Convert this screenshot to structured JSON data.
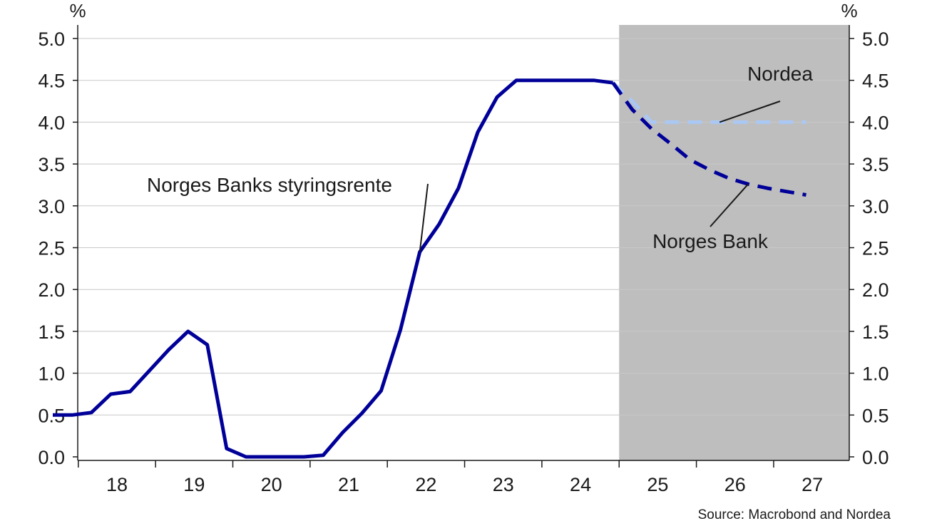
{
  "chart_data": {
    "type": "line",
    "y_unit_left": "%",
    "y_unit_right": "%",
    "ylim": [
      0.0,
      5.0
    ],
    "y_ticks": [
      "0.0",
      "0.5",
      "1.0",
      "1.5",
      "2.0",
      "2.5",
      "3.0",
      "3.5",
      "4.0",
      "4.5",
      "5.0"
    ],
    "x_ticks": [
      "18",
      "19",
      "20",
      "21",
      "22",
      "23",
      "24",
      "25",
      "26",
      "27"
    ],
    "xlim": [
      2017.55,
      2027.45
    ],
    "grid": true,
    "forecast_shading": {
      "from": 2025.0,
      "to": 2027.45,
      "color": "#bebebe"
    },
    "series": [
      {
        "name": "Norges Banks styringsrente",
        "style": "solid",
        "color": "#000099",
        "x": [
          2017.67,
          2017.92,
          2018.17,
          2018.42,
          2018.67,
          2018.92,
          2019.17,
          2019.42,
          2019.67,
          2019.92,
          2020.17,
          2020.42,
          2020.67,
          2020.92,
          2021.17,
          2021.42,
          2021.67,
          2021.92,
          2022.17,
          2022.42,
          2022.67,
          2022.92,
          2023.17,
          2023.42,
          2023.67,
          2023.92,
          2024.17,
          2024.42,
          2024.67,
          2024.92
        ],
        "y": [
          0.5,
          0.5,
          0.53,
          0.75,
          0.78,
          1.03,
          1.28,
          1.5,
          1.34,
          0.1,
          0.0,
          0.0,
          0.0,
          0.0,
          0.02,
          0.29,
          0.52,
          0.79,
          1.52,
          2.45,
          2.78,
          3.21,
          3.88,
          4.3,
          4.5,
          4.5,
          4.5,
          4.5,
          4.5,
          4.47
        ]
      },
      {
        "name": "Nordea",
        "style": "dashed",
        "color": "#aac8f4",
        "x": [
          2024.92,
          2025.17,
          2025.42,
          2025.67,
          2025.92,
          2026.17,
          2026.42,
          2026.67,
          2026.92,
          2027.17,
          2027.42
        ],
        "y": [
          4.47,
          4.25,
          4.0,
          4.0,
          4.0,
          4.0,
          4.0,
          4.0,
          4.0,
          4.0,
          4.0
        ]
      },
      {
        "name": "Norges Bank",
        "style": "dashed",
        "color": "#000099",
        "x": [
          2024.92,
          2025.17,
          2025.42,
          2025.67,
          2025.92,
          2026.17,
          2026.42,
          2026.67,
          2026.92,
          2027.17,
          2027.42
        ],
        "y": [
          4.47,
          4.15,
          3.92,
          3.74,
          3.55,
          3.43,
          3.33,
          3.26,
          3.21,
          3.17,
          3.13
        ]
      }
    ],
    "annotations": [
      {
        "text": "Norges Banks styringsrente",
        "series": "Norges Banks styringsrente"
      },
      {
        "text": "Nordea",
        "series": "Nordea"
      },
      {
        "text": "Norges Bank",
        "series": "Norges Bank"
      }
    ],
    "source": "Source: Macrobond and Nordea"
  },
  "colors": {
    "grid": "#c8c8c8",
    "axis": "#1a1a1a",
    "leader": "#1a1a1a"
  }
}
